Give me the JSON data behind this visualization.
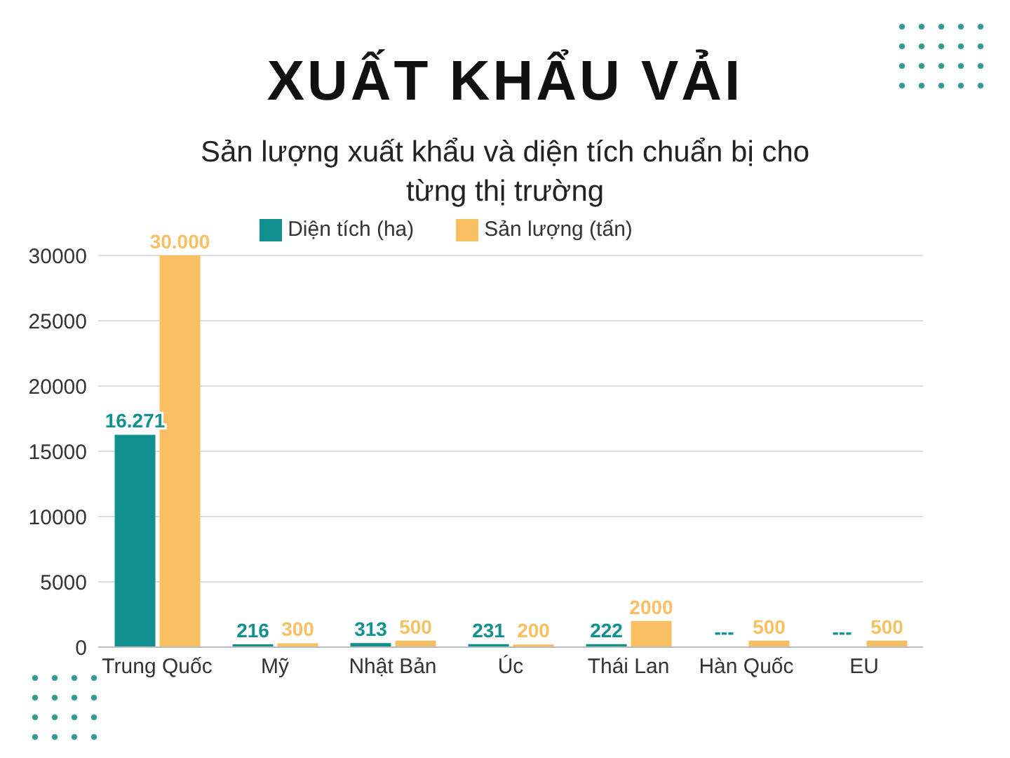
{
  "chart_data": {
    "type": "bar",
    "title": "XUẤT KHẨU VẢI",
    "subtitle": "Sản lượng xuất khẩu và diện tích chuẩn bị cho từng thị trường",
    "categories": [
      "Trung Quốc",
      "Mỹ",
      "Nhật Bản",
      "Úc",
      "Thái Lan",
      "Hàn Quốc",
      "EU"
    ],
    "series": [
      {
        "name": "Diện tích (ha)",
        "color": "#10918f",
        "values": [
          16271,
          216,
          313,
          231,
          222,
          null,
          null
        ],
        "value_labels": [
          "16.271",
          "216",
          "313",
          "231",
          "222",
          "---",
          "---"
        ]
      },
      {
        "name": "Sản lượng (tấn)",
        "color": "#f8c063",
        "values": [
          30000,
          300,
          500,
          200,
          2000,
          500,
          500
        ],
        "value_labels": [
          "30.000",
          "300",
          "500",
          "200",
          "2000",
          "500",
          "500"
        ]
      }
    ],
    "ylim": [
      0,
      30000
    ],
    "yticks": [
      0,
      5000,
      10000,
      15000,
      20000,
      25000,
      30000
    ],
    "grid": "y",
    "legend": "top"
  }
}
